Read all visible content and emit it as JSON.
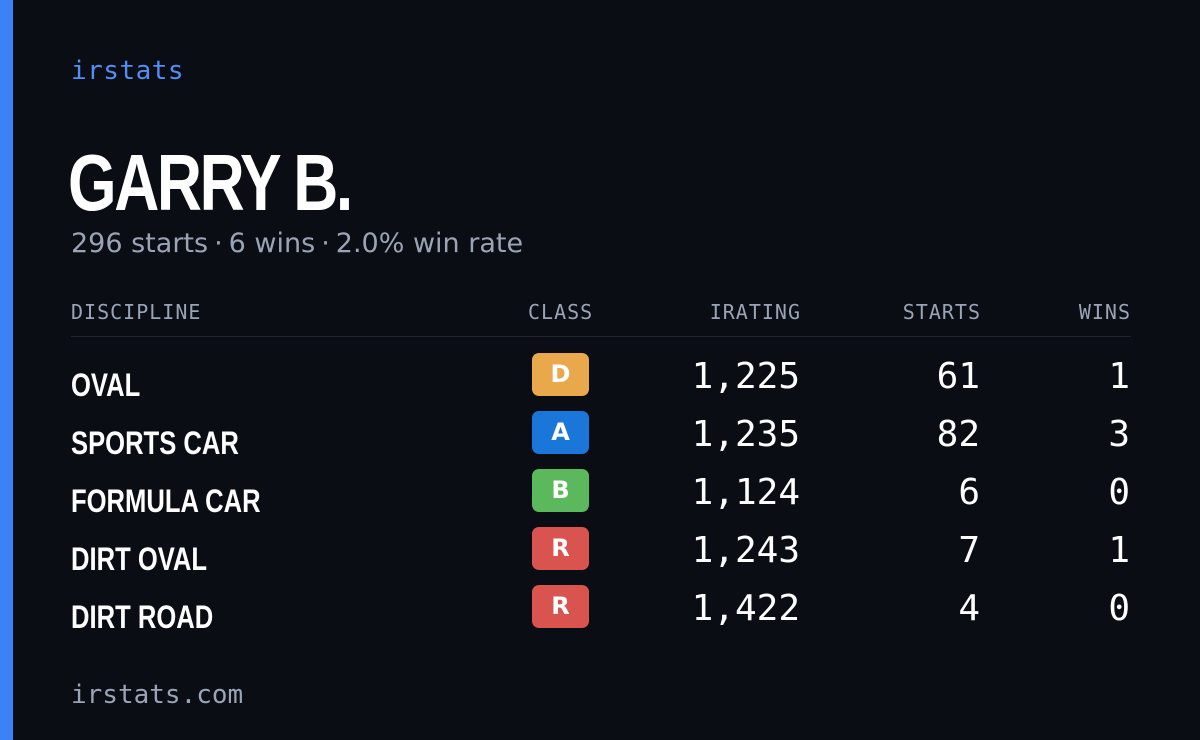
{
  "brand": "irstats",
  "driver": {
    "name": "GARRY B.",
    "starts_text": "296 starts",
    "wins_text": "6 wins",
    "win_rate_text": "2.0% win rate",
    "separator": "·"
  },
  "table": {
    "headers": {
      "discipline": "DISCIPLINE",
      "class": "CLASS",
      "irating": "IRATING",
      "starts": "STARTS",
      "wins": "WINS"
    },
    "rows": [
      {
        "discipline": "OVAL",
        "class": "D",
        "class_color": "#e9a84c",
        "irating": "1,225",
        "starts": "61",
        "wins": "1"
      },
      {
        "discipline": "SPORTS CAR",
        "class": "A",
        "class_color": "#1a76d8",
        "irating": "1,235",
        "starts": "82",
        "wins": "3"
      },
      {
        "discipline": "FORMULA CAR",
        "class": "B",
        "class_color": "#5cb85c",
        "irating": "1,124",
        "starts": "6",
        "wins": "0"
      },
      {
        "discipline": "DIRT OVAL",
        "class": "R",
        "class_color": "#d9534f",
        "irating": "1,243",
        "starts": "7",
        "wins": "1"
      },
      {
        "discipline": "DIRT ROAD",
        "class": "R",
        "class_color": "#d9534f",
        "irating": "1,422",
        "starts": "4",
        "wins": "0"
      }
    ]
  },
  "footer": {
    "site": "irstats.com"
  },
  "colors": {
    "background": "#0a0d14",
    "accent": "#3b82f6",
    "brand": "#4f8ff7",
    "muted_text": "#9aa4b6"
  }
}
